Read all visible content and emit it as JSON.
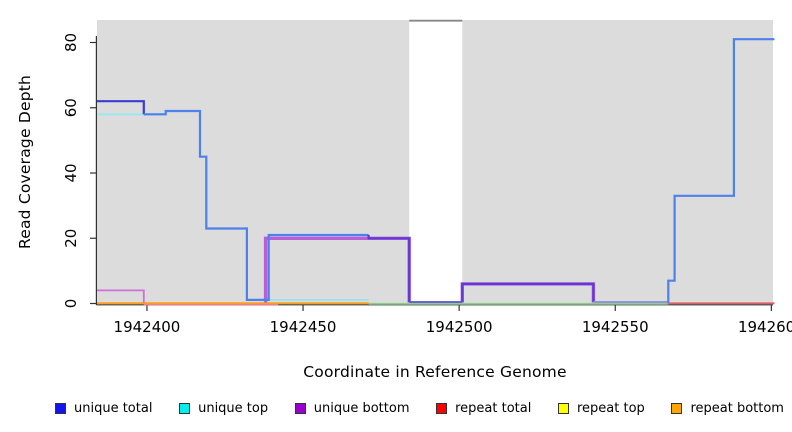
{
  "x_axis": {
    "label": "Coordinate in Reference Genome",
    "tick_labels": [
      "1942400",
      "1942450",
      "1942500",
      "1942550",
      "1942600"
    ],
    "tick_values": [
      1942400,
      1942450,
      1942500,
      1942550,
      1942600
    ],
    "range": [
      1942384,
      1942601
    ]
  },
  "y_axis": {
    "label": "Read Coverage Depth",
    "tick_labels": [
      "0",
      "20",
      "40",
      "60",
      "80"
    ],
    "tick_values": [
      0,
      20,
      40,
      60,
      80
    ],
    "range": [
      0,
      87
    ]
  },
  "legend": {
    "items": [
      {
        "label": "unique total",
        "color": "#1414EE"
      },
      {
        "label": "unique top",
        "color": "#00EEEE"
      },
      {
        "label": "unique bottom",
        "color": "#9A00CC"
      },
      {
        "label": "repeat total",
        "color": "#FF0000"
      },
      {
        "label": "repeat top",
        "color": "#FFFF00"
      },
      {
        "label": "repeat bottom",
        "color": "#FFA500"
      }
    ]
  },
  "chart_data": {
    "type": "line",
    "subtype": "step",
    "title": "",
    "xlabel": "Coordinate in Reference Genome",
    "ylabel": "Read Coverage Depth",
    "xlim": [
      1942384,
      1942601
    ],
    "ylim": [
      0,
      87
    ],
    "grid": false,
    "legend_position": "bottom",
    "background": "#DCDCDC",
    "masked_region": {
      "x_start": 1942484,
      "x_end": 1942501,
      "color": "#FFFFFF"
    },
    "x_end": 1942601,
    "series": [
      {
        "name": "unique total",
        "color": "#1414EE",
        "steps": [
          [
            1942384,
            62
          ],
          [
            1942399,
            58
          ],
          [
            1942406,
            59
          ],
          [
            1942417,
            45
          ],
          [
            1942419,
            23
          ],
          [
            1942432,
            1
          ],
          [
            1942439,
            21
          ],
          [
            1942471,
            20
          ],
          [
            1942484,
            0
          ],
          [
            1942501,
            6
          ],
          [
            1942543,
            0
          ],
          [
            1942567,
            7
          ],
          [
            1942569,
            33
          ],
          [
            1942588,
            81
          ]
        ]
      },
      {
        "name": "unique top",
        "color": "#00EEEE",
        "steps": [
          [
            1942384,
            58
          ],
          [
            1942406,
            59
          ],
          [
            1942417,
            45
          ],
          [
            1942419,
            23
          ],
          [
            1942432,
            1
          ],
          [
            1942471,
            0
          ],
          [
            1942567,
            7
          ],
          [
            1942569,
            33
          ],
          [
            1942588,
            81
          ]
        ]
      },
      {
        "name": "unique bottom",
        "color": "#9A00CC",
        "steps": [
          [
            1942384,
            4
          ],
          [
            1942399,
            0
          ],
          [
            1942438,
            20
          ],
          [
            1942484,
            0
          ],
          [
            1942501,
            6
          ],
          [
            1942543,
            0
          ]
        ]
      },
      {
        "name": "repeat total",
        "color": "#FF0000",
        "steps": [
          [
            1942384,
            0
          ]
        ]
      },
      {
        "name": "repeat top",
        "color": "#FFFF00",
        "steps": [
          [
            1942384,
            0
          ]
        ]
      },
      {
        "name": "repeat bottom",
        "color": "#FFA500",
        "steps": [
          [
            1942384,
            0
          ]
        ]
      }
    ]
  },
  "render_lines": [
    {
      "name": "pink-zero",
      "color": "#E87A9C",
      "w": 1.6,
      "pts": [
        [
          1942399,
          -0.35
        ],
        [
          1942442,
          -0.35
        ]
      ]
    },
    {
      "name": "orange-zero",
      "color": "#FF9D21",
      "w": 2.0,
      "pts": [
        [
          1942384,
          0.1
        ],
        [
          1942471,
          0.1
        ]
      ]
    },
    {
      "name": "green-zero",
      "color": "#8CCE8C",
      "w": 1.8,
      "pts": [
        [
          1942471,
          -0.1
        ],
        [
          1942567,
          -0.1
        ]
      ]
    },
    {
      "name": "red-zero",
      "color": "#DD5F5F",
      "w": 1.8,
      "pts": [
        [
          1942567,
          0.05
        ],
        [
          1942601,
          0.05
        ]
      ]
    },
    {
      "name": "orchid-left",
      "color": "#CE70D8",
      "w": 1.8,
      "pts": [
        [
          1942384,
          4
        ],
        [
          1942399,
          4
        ],
        [
          1942399,
          0.2
        ]
      ]
    },
    {
      "name": "cyan-58",
      "color": "#9AE8EE",
      "w": 1.8,
      "pts": [
        [
          1942384,
          58
        ],
        [
          1942406,
          58
        ]
      ]
    },
    {
      "name": "cyan-1",
      "color": "#8FE6F2",
      "w": 1.8,
      "pts": [
        [
          1942439,
          1.1
        ],
        [
          1942471,
          1.1
        ]
      ]
    },
    {
      "name": "purple-20",
      "color": "#B75FD9",
      "w": 3.4,
      "pts": [
        [
          1942438,
          0.3
        ],
        [
          1942438,
          20
        ],
        [
          1942484,
          20
        ],
        [
          1942484,
          0.3
        ]
      ]
    },
    {
      "name": "purple-6",
      "color": "#B75FD9",
      "w": 3.4,
      "pts": [
        [
          1942501,
          0.3
        ],
        [
          1942501,
          6
        ],
        [
          1942543,
          6
        ],
        [
          1942543,
          0.3
        ]
      ]
    },
    {
      "name": "blue-62",
      "color": "#3B3BD4",
      "w": 2.2,
      "pts": [
        [
          1942384,
          62
        ],
        [
          1942399,
          62
        ],
        [
          1942399,
          58
        ]
      ]
    },
    {
      "name": "blue-main",
      "color": "#4C80EA",
      "w": 2.2,
      "pts": [
        [
          1942399,
          58
        ],
        [
          1942406,
          58
        ],
        [
          1942406,
          59
        ],
        [
          1942417,
          59
        ],
        [
          1942417,
          45
        ],
        [
          1942419,
          45
        ],
        [
          1942419,
          23
        ],
        [
          1942432,
          23
        ],
        [
          1942432,
          1.1
        ],
        [
          1942439,
          1.1
        ],
        [
          1942439,
          21
        ],
        [
          1942471,
          21
        ]
      ]
    },
    {
      "name": "indigo-20",
      "color": "#5A3BD6",
      "w": 2.2,
      "pts": [
        [
          1942471,
          21
        ],
        [
          1942471,
          20
        ],
        [
          1942484,
          20
        ],
        [
          1942484,
          0.45
        ]
      ]
    },
    {
      "name": "indigo-6",
      "color": "#5A3BD6",
      "w": 2.2,
      "pts": [
        [
          1942501,
          0.45
        ],
        [
          1942501,
          6
        ],
        [
          1942543,
          6
        ],
        [
          1942543,
          0.45
        ]
      ]
    },
    {
      "name": "indigo-band-zero",
      "color": "#5F4BD8",
      "w": 1.8,
      "pts": [
        [
          1942484,
          0.45
        ],
        [
          1942501,
          0.45
        ]
      ]
    },
    {
      "name": "indigo-right-zero",
      "color": "#8F86E0",
      "w": 1.8,
      "pts": [
        [
          1942543,
          0.45
        ],
        [
          1942567,
          0.45
        ]
      ]
    },
    {
      "name": "blue-right",
      "color": "#4C80EA",
      "w": 2.2,
      "pts": [
        [
          1942567,
          0.1
        ],
        [
          1942567,
          7
        ],
        [
          1942569,
          7
        ],
        [
          1942569,
          33
        ],
        [
          1942588,
          33
        ],
        [
          1942588,
          81
        ],
        [
          1942601,
          81
        ]
      ]
    }
  ]
}
